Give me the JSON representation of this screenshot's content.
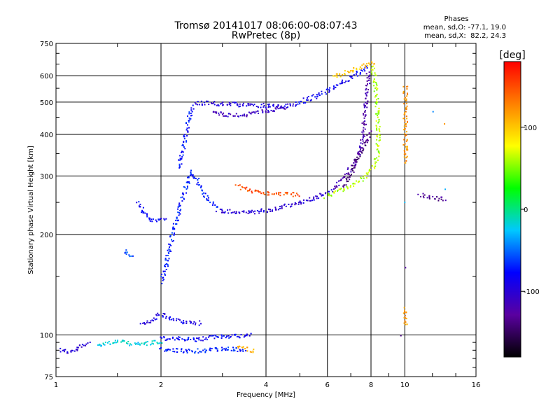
{
  "chart_data": {
    "type": "scatter",
    "title": "Tromsø 20141017 08:06:00-08:07:43",
    "subtitle": "RwPretec (8p)",
    "xlabel": "Frequency [MHz]",
    "ylabel": "Stationary phase Virtual Height [km]",
    "x_scale": "log",
    "y_scale": "log",
    "xlim": [
      1,
      16
    ],
    "ylim": [
      75,
      750
    ],
    "x_ticks": [
      1,
      2,
      4,
      6,
      8,
      10,
      16
    ],
    "x_tick_labels": [
      "1",
      "2",
      "4",
      "6",
      "8",
      "10",
      "16"
    ],
    "y_ticks": [
      75,
      100,
      200,
      300,
      400,
      500,
      600,
      750
    ],
    "y_tick_labels": [
      "75",
      "100",
      "200",
      "300",
      "400",
      "500",
      "600",
      "750"
    ],
    "grid": true,
    "stats": {
      "header": "Phases",
      "line_o": "mean, sd,O: -77.1, 19.0",
      "line_x": "mean, sd,X:  82.2, 24.3"
    },
    "colorbar": {
      "label": "[deg]",
      "range": [
        -180,
        180
      ],
      "ticks": [
        100,
        0,
        -100
      ],
      "tick_labels": [
        "100",
        "0",
        "-100"
      ],
      "colors": [
        "#000000",
        "#5a00a0",
        "#0000ff",
        "#00c8ff",
        "#00ff00",
        "#ffff00",
        "#ff8000",
        "#ff0000"
      ]
    },
    "traces": [
      {
        "phase": -100,
        "points": [
          [
            1.02,
            91
          ],
          [
            1.05,
            90
          ],
          [
            1.08,
            89
          ],
          [
            1.12,
            90
          ],
          [
            1.18,
            93
          ],
          [
            1.24,
            95
          ]
        ]
      },
      {
        "phase": -20,
        "points": [
          [
            1.3,
            94
          ],
          [
            1.4,
            95
          ],
          [
            1.5,
            96
          ],
          [
            1.6,
            95
          ],
          [
            1.7,
            94
          ],
          [
            1.85,
            95
          ],
          [
            2.0,
            96
          ]
        ]
      },
      {
        "phase": -80,
        "points": [
          [
            2.0,
            98
          ],
          [
            2.2,
            98
          ],
          [
            2.5,
            97
          ],
          [
            2.8,
            99
          ],
          [
            3.2,
            100
          ],
          [
            3.6,
            100
          ]
        ]
      },
      {
        "phase": -70,
        "points": [
          [
            2.0,
            91
          ],
          [
            2.3,
            90
          ],
          [
            2.6,
            90
          ],
          [
            2.9,
            91
          ],
          [
            3.2,
            91
          ],
          [
            3.5,
            90
          ]
        ]
      },
      {
        "phase": -90,
        "points": [
          [
            1.75,
            108
          ],
          [
            1.9,
            112
          ],
          [
            2.0,
            116
          ],
          [
            2.15,
            112
          ],
          [
            2.3,
            110
          ],
          [
            2.6,
            109
          ]
        ]
      },
      {
        "phase": -60,
        "points": [
          [
            1.55,
            180
          ],
          [
            1.6,
            176
          ],
          [
            1.65,
            172
          ]
        ]
      },
      {
        "phase": -80,
        "points": [
          [
            1.7,
            252
          ],
          [
            1.75,
            240
          ],
          [
            1.8,
            230
          ],
          [
            1.85,
            224
          ],
          [
            1.95,
            222
          ],
          [
            2.05,
            224
          ]
        ]
      },
      {
        "phase": -70,
        "points": [
          [
            2.0,
            145
          ],
          [
            2.05,
            160
          ],
          [
            2.1,
            180
          ],
          [
            2.15,
            200
          ],
          [
            2.2,
            220
          ],
          [
            2.25,
            240
          ],
          [
            2.3,
            260
          ],
          [
            2.35,
            280
          ],
          [
            2.4,
            300
          ],
          [
            2.45,
            310
          ],
          [
            2.5,
            300
          ],
          [
            2.55,
            285
          ],
          [
            2.62,
            270
          ],
          [
            2.7,
            260
          ],
          [
            2.8,
            250
          ],
          [
            2.9,
            242
          ]
        ]
      },
      {
        "phase": -75,
        "points": [
          [
            2.25,
            320
          ],
          [
            2.3,
            360
          ],
          [
            2.35,
            400
          ],
          [
            2.38,
            440
          ],
          [
            2.42,
            470
          ],
          [
            2.45,
            490
          ]
        ]
      },
      {
        "phase": -95,
        "points": [
          [
            2.5,
            500
          ],
          [
            2.7,
            498
          ],
          [
            3.0,
            496
          ],
          [
            3.3,
            494
          ],
          [
            3.6,
            492
          ],
          [
            4.0,
            490
          ],
          [
            4.4,
            488
          ],
          [
            4.8,
            490
          ]
        ]
      },
      {
        "phase": -110,
        "points": [
          [
            2.8,
            470
          ],
          [
            3.0,
            462
          ],
          [
            3.2,
            458
          ],
          [
            3.5,
            460
          ],
          [
            3.8,
            468
          ],
          [
            4.2,
            478
          ],
          [
            4.6,
            482
          ]
        ]
      },
      {
        "phase": -85,
        "points": [
          [
            4.8,
            495
          ],
          [
            5.2,
            510
          ],
          [
            5.6,
            525
          ],
          [
            6.0,
            545
          ],
          [
            6.4,
            565
          ],
          [
            6.8,
            585
          ],
          [
            7.2,
            605
          ],
          [
            7.5,
            625
          ],
          [
            7.8,
            640
          ]
        ]
      },
      {
        "phase": -100,
        "points": [
          [
            2.9,
            238
          ],
          [
            3.2,
            236
          ],
          [
            3.5,
            234
          ],
          [
            3.8,
            236
          ],
          [
            4.2,
            240
          ],
          [
            4.6,
            246
          ],
          [
            5.0,
            252
          ],
          [
            5.4,
            258
          ],
          [
            5.8,
            266
          ],
          [
            6.2,
            274
          ]
        ]
      },
      {
        "phase": -120,
        "points": [
          [
            6.2,
            275
          ],
          [
            6.6,
            295
          ],
          [
            7.0,
            320
          ],
          [
            7.3,
            350
          ],
          [
            7.5,
            380
          ],
          [
            7.6,
            420
          ],
          [
            7.65,
            460
          ],
          [
            7.7,
            500
          ],
          [
            7.75,
            540
          ],
          [
            7.8,
            580
          ],
          [
            7.85,
            620
          ]
        ]
      },
      {
        "phase": -140,
        "points": [
          [
            6.6,
            280
          ],
          [
            6.9,
            300
          ],
          [
            7.2,
            330
          ],
          [
            7.5,
            360
          ],
          [
            7.8,
            390
          ],
          [
            8.0,
            410
          ]
        ]
      },
      {
        "phase": 60,
        "points": [
          [
            5.9,
            262
          ],
          [
            6.3,
            268
          ],
          [
            6.8,
            278
          ],
          [
            7.3,
            290
          ],
          [
            7.8,
            305
          ],
          [
            8.1,
            320
          ],
          [
            8.3,
            345
          ],
          [
            8.35,
            380
          ],
          [
            8.35,
            420
          ],
          [
            8.3,
            470
          ],
          [
            8.25,
            520
          ],
          [
            8.2,
            570
          ],
          [
            8.1,
            620
          ],
          [
            8.0,
            650
          ]
        ]
      },
      {
        "phase": 100,
        "points": [
          [
            6.2,
            600
          ],
          [
            6.6,
            612
          ],
          [
            7.0,
            625
          ],
          [
            7.4,
            640
          ],
          [
            7.9,
            655
          ],
          [
            8.2,
            645
          ]
        ]
      },
      {
        "phase": 150,
        "points": [
          [
            3.3,
            280
          ],
          [
            3.6,
            272
          ],
          [
            3.9,
            268
          ],
          [
            4.2,
            267
          ],
          [
            4.6,
            266
          ],
          [
            5.0,
            265
          ]
        ]
      },
      {
        "phase": 110,
        "points": [
          [
            3.3,
            92
          ],
          [
            3.5,
            91
          ],
          [
            3.7,
            90
          ]
        ]
      },
      {
        "phase": 120,
        "points": [
          [
            10.0,
            560
          ],
          [
            10.0,
            420
          ],
          [
            10.0,
            370
          ],
          [
            10.0,
            330
          ],
          [
            10.0,
            120
          ],
          [
            10.0,
            108
          ],
          [
            13.0,
            430
          ]
        ]
      },
      {
        "phase": -130,
        "points": [
          [
            9.7,
            100
          ],
          [
            10.0,
            160
          ],
          [
            11.0,
            265
          ],
          [
            13.0,
            255
          ]
        ]
      },
      {
        "phase": -30,
        "points": [
          [
            12.0,
            470
          ],
          [
            13.0,
            275
          ],
          [
            10.0,
            250
          ]
        ]
      }
    ]
  }
}
